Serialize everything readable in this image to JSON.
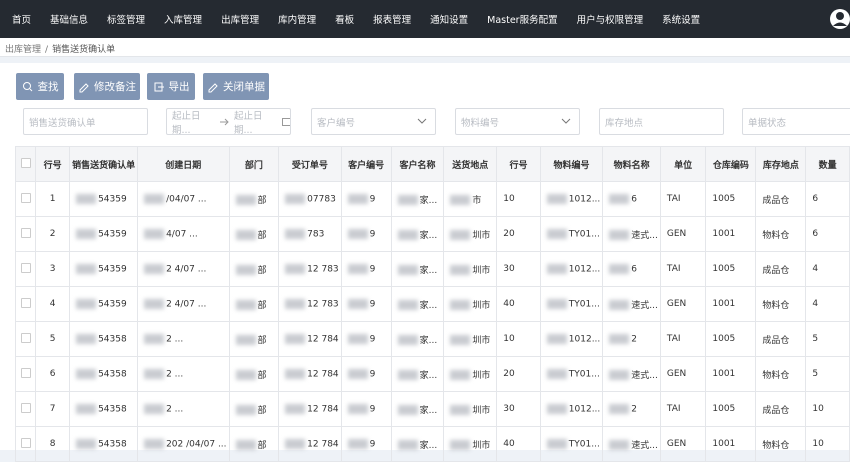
{
  "nav": {
    "items": [
      "首页",
      "基础信息",
      "标签管理",
      "入库管理",
      "出库管理",
      "库内管理",
      "看板",
      "报表管理",
      "通知设置",
      "Master服务配置",
      "用户与权限管理",
      "系统设置"
    ]
  },
  "breadcrumb": {
    "items": [
      "出库管理",
      "销售送货确认单"
    ],
    "separator": "/"
  },
  "toolbar": {
    "buttons": [
      "查找",
      "修改备注",
      "导出",
      "关闭单据"
    ]
  },
  "filters": {
    "confirm_no": "销售送货确认单",
    "date_start": "起止日期...",
    "date_end": "起止日期...",
    "customer": "客户编号",
    "material": "物料编号",
    "location": "库存地点",
    "status": "单据状态"
  },
  "table": {
    "columns": [
      "行号",
      "销售送货确认单",
      "创建日期",
      "部门",
      "受订单号",
      "客户编号",
      "客户名称",
      "送货地点",
      "行号",
      "物料编号",
      "物料名称",
      "单位",
      "仓库编码",
      "库存地点",
      "数量"
    ],
    "rows": [
      [
        "1",
        "54359",
        "/04/07 ...",
        "部",
        "07783",
        "9",
        "家...",
        "市",
        "10",
        "1012...",
        "6",
        "TAI",
        "1005",
        "成品仓",
        "6"
      ],
      [
        "2",
        "54359",
        "4/07 ...",
        "部",
        "783",
        "9",
        "家...",
        "圳市",
        "20",
        "TY01...",
        "速式...",
        "GEN",
        "1001",
        "物料仓",
        "6"
      ],
      [
        "3",
        "54359",
        "2 4/07 ...",
        "部",
        "12 783",
        "9",
        "家...",
        "圳市",
        "30",
        "1012...",
        "6",
        "TAI",
        "1005",
        "成品仓",
        "4"
      ],
      [
        "4",
        "54359",
        "2 4/07 ...",
        "部",
        "12 783",
        "9",
        "家...",
        "圳市",
        "40",
        "TY01...",
        "速式...",
        "GEN",
        "1001",
        "物料仓",
        "4"
      ],
      [
        "5",
        "54358",
        "2 ...",
        "部",
        "12 784",
        "9",
        "家...",
        "圳市",
        "10",
        "1012...",
        "2",
        "TAI",
        "1005",
        "成品仓",
        "5"
      ],
      [
        "6",
        "54358",
        "2 ...",
        "部",
        "12 784",
        "9",
        "家...",
        "圳市",
        "20",
        "TY01...",
        "速式...",
        "GEN",
        "1001",
        "物料仓",
        "5"
      ],
      [
        "7",
        "54358",
        "2 ...",
        "部",
        "12 784",
        "9",
        "家...",
        "圳市",
        "30",
        "1012...",
        "2",
        "TAI",
        "1005",
        "成品仓",
        "10"
      ],
      [
        "8",
        "54358",
        "202 /04/07 ...",
        "部",
        "12 784",
        "9",
        "家...",
        "圳市",
        "40",
        "TY01...",
        "速式...",
        "GEN",
        "1001",
        "物料仓",
        "10"
      ]
    ]
  }
}
